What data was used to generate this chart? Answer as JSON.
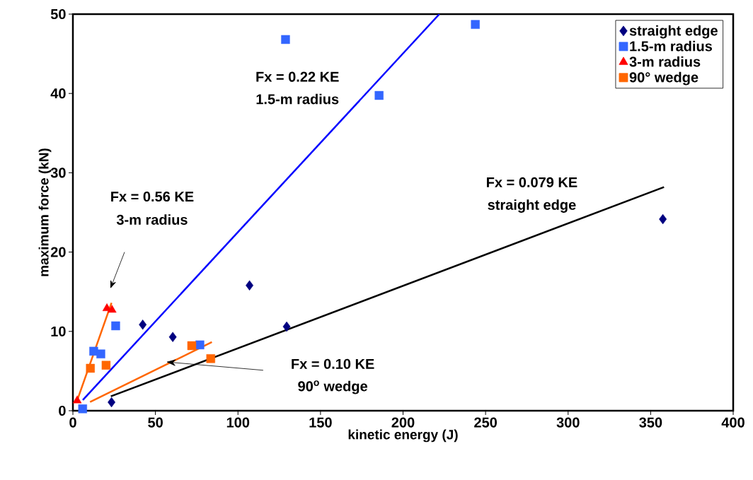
{
  "chart_data": {
    "type": "scatter",
    "xlabel": "kinetic energy (J)",
    "ylabel": "maximum force (kN)",
    "xlim": [
      0,
      400
    ],
    "ylim": [
      0,
      50
    ],
    "xticks": [
      0,
      50,
      100,
      150,
      200,
      250,
      300,
      350,
      400
    ],
    "yticks": [
      0,
      10,
      20,
      30,
      40,
      50
    ],
    "grid": false,
    "legend": "top right",
    "series": [
      {
        "name": "straight edge",
        "color": "#000080",
        "marker": "diamond",
        "x": [
          23.4,
          42.3,
          60.5,
          107,
          129.5,
          357.4
        ],
        "values": [
          1.07,
          10.85,
          9.3,
          15.8,
          10.6,
          24.15
        ]
      },
      {
        "name": "1.5-m radius",
        "color": "#3366ff",
        "marker": "square",
        "x": [
          5.9,
          12.6,
          16.9,
          25.9,
          76.9,
          128.8,
          185.5,
          243.8
        ],
        "values": [
          0.24,
          7.5,
          7.16,
          10.7,
          8.3,
          46.8,
          39.75,
          48.7
        ]
      },
      {
        "name": "3-m radius",
        "color": "#ff0000",
        "marker": "triangle",
        "x": [
          2.6,
          20.6,
          23.7
        ],
        "values": [
          1.28,
          12.9,
          12.7
        ]
      },
      {
        "name": "90° wedge",
        "color": "#ff6600",
        "marker": "square",
        "x": [
          10.6,
          20.1,
          72.0,
          83.5
        ],
        "values": [
          5.35,
          5.73,
          8.2,
          6.57
        ]
      },
      {
        "type": "line",
        "color": "#0000ff",
        "marker": "none",
        "x": [
          6,
          222
        ],
        "values": [
          1.35,
          50
        ]
      },
      {
        "type": "line",
        "color": "#000000",
        "marker": "none",
        "x": [
          23,
          358.1
        ],
        "values": [
          1.81,
          28.2
        ]
      },
      {
        "type": "line",
        "color": "#ff6600",
        "marker": "none",
        "x": [
          2.6,
          23.4
        ],
        "values": [
          1.3,
          13.6
        ]
      },
      {
        "type": "line",
        "color": "#ff6600",
        "marker": "none",
        "x": [
          10.4,
          84.2
        ],
        "values": [
          1.1,
          8.65
        ]
      }
    ],
    "annotations": [
      "Fx = 0.22 KE",
      "1.5-m radius",
      "Fx = 0.56 KE",
      "3-m radius",
      "Fx = 0.079 KE",
      "straight edge",
      "Fx = 0.10 KE",
      "90$^{o}$ wedge"
    ]
  }
}
